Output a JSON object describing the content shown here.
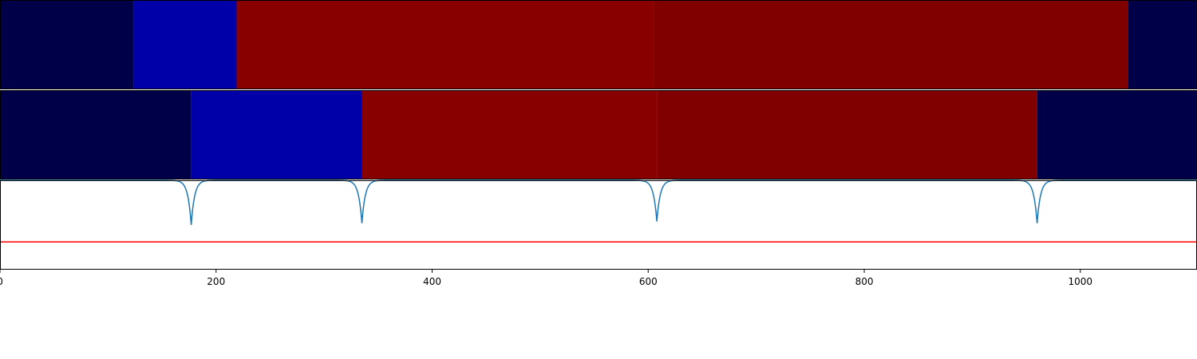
{
  "chart_data": {
    "type": "heatmap",
    "title": "",
    "xlabel": "",
    "ylabel": "",
    "xlim": [
      0,
      1108
    ],
    "x_ticks": [
      0,
      200,
      400,
      600,
      800,
      1000
    ],
    "x_tick_labels": [
      "0",
      "200",
      "400",
      "600",
      "800",
      "1000"
    ],
    "grid": false,
    "rows": [
      {
        "segments": [
          {
            "start": 0,
            "end": 124,
            "color": "#000048"
          },
          {
            "start": 124,
            "end": 219,
            "color": "#0000a8"
          },
          {
            "start": 219,
            "end": 605,
            "color": "#890000"
          },
          {
            "start": 605,
            "end": 1044,
            "color": "#800000"
          },
          {
            "start": 1044,
            "end": 1108,
            "color": "#000048"
          }
        ]
      },
      {
        "segments": [
          {
            "start": 0,
            "end": 177,
            "color": "#000048"
          },
          {
            "start": 177,
            "end": 335,
            "color": "#0000a8"
          },
          {
            "start": 335,
            "end": 608,
            "color": "#890000"
          },
          {
            "start": 608,
            "end": 960,
            "color": "#800000"
          },
          {
            "start": 960,
            "end": 1108,
            "color": "#000048"
          }
        ]
      }
    ],
    "line_panel": {
      "ylim": [
        0,
        1
      ],
      "series": [
        {
          "color": "#1f77b4",
          "baseline": 1.0,
          "dips": [
            {
              "center": 177,
              "depth": 0.5,
              "width": 4
            },
            {
              "center": 335,
              "depth": 0.48,
              "width": 4
            },
            {
              "center": 608,
              "depth": 0.46,
              "width": 4
            },
            {
              "center": 960,
              "depth": 0.48,
              "width": 4
            }
          ]
        }
      ],
      "hline": {
        "y": 0.31,
        "color": "#ff0000"
      }
    }
  }
}
